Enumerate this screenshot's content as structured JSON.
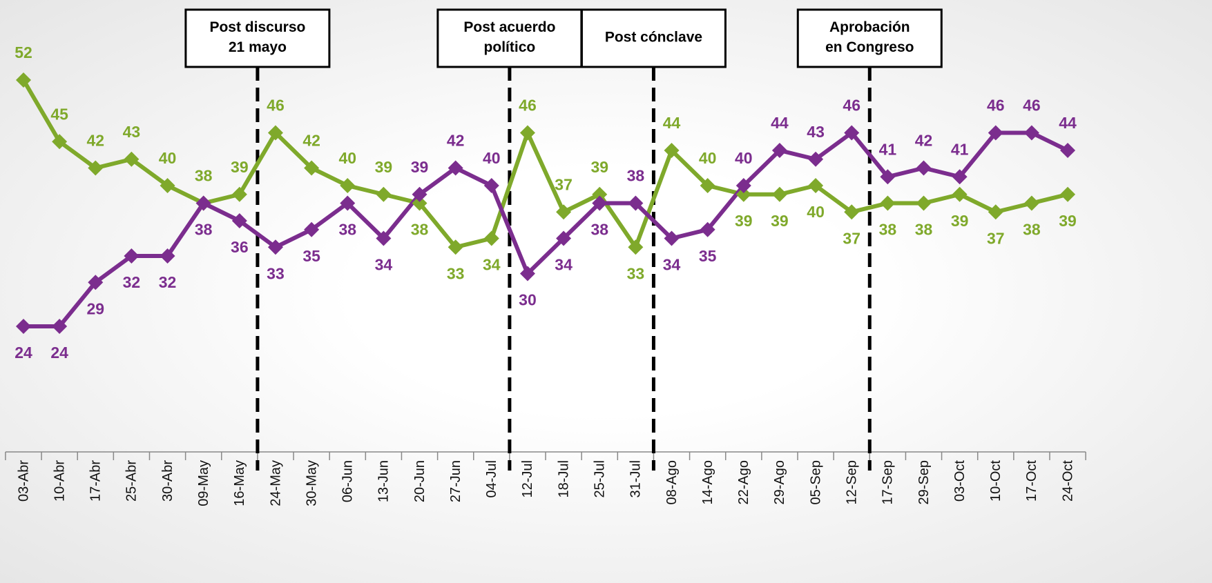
{
  "chart_data": {
    "type": "line",
    "categories": [
      "03-Abr",
      "10-Abr",
      "17-Abr",
      "25-Abr",
      "30-Abr",
      "09-May",
      "16-May",
      "24-May",
      "30-May",
      "06-Jun",
      "13-Jun",
      "20-Jun",
      "27-Jun",
      "04-Jul",
      "12-Jul",
      "18-Jul",
      "25-Jul",
      "31-Jul",
      "08-Ago",
      "14-Ago",
      "22-Ago",
      "29-Ago",
      "05-Sep",
      "12-Sep",
      "17-Sep",
      "29-Sep",
      "03-Oct",
      "10-Oct",
      "17-Oct",
      "24-Oct"
    ],
    "series": [
      {
        "color": "#7fa92b",
        "values": [
          52,
          45,
          42,
          43,
          40,
          38,
          39,
          46,
          42,
          40,
          39,
          38,
          33,
          34,
          46,
          37,
          39,
          33,
          44,
          40,
          39,
          39,
          40,
          37,
          38,
          38,
          39,
          37,
          38,
          39
        ]
      },
      {
        "color": "#7b2d8e",
        "values": [
          24,
          24,
          29,
          32,
          32,
          38,
          36,
          33,
          35,
          38,
          34,
          39,
          42,
          40,
          30,
          34,
          38,
          38,
          34,
          35,
          40,
          44,
          43,
          46,
          41,
          42,
          41,
          46,
          46,
          44
        ]
      }
    ],
    "annotations": [
      [
        "Post discurso",
        "21 mayo"
      ],
      [
        "Post acuerdo",
        "político"
      ],
      [
        "Post cónclave"
      ],
      [
        "Aprobación",
        "en Congreso"
      ]
    ]
  }
}
